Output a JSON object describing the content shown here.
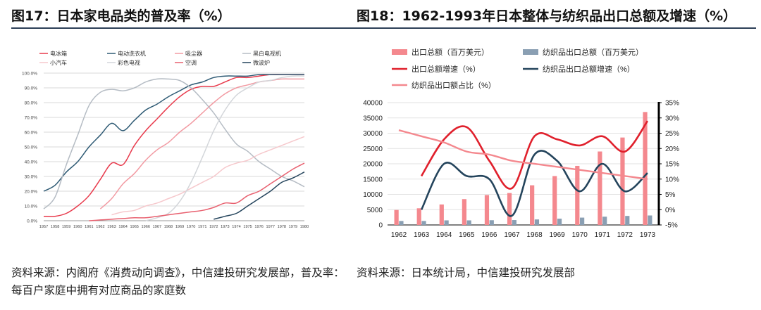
{
  "left": {
    "title": "图17：日本家电品类的普及率（%）",
    "source": "资料来源：内阁府《消费动向调查》，中信建投研究发展部，普及率：每百户家庭中拥有对应商品的家庭数"
  },
  "right": {
    "title": "图18：1962-1993年日本整体与纺织品出口总额及增速（%）",
    "source": "资料来源：日本统计局，中信建投研究发展部"
  },
  "chart_data": [
    {
      "type": "line",
      "title": "日本家电品类的普及率（%）",
      "x": [
        1957,
        1958,
        1959,
        1960,
        1961,
        1962,
        1963,
        1964,
        1965,
        1966,
        1967,
        1968,
        1969,
        1970,
        1971,
        1972,
        1973,
        1974,
        1975,
        1976,
        1977,
        1978,
        1979,
        1980
      ],
      "ylim": [
        0,
        100
      ],
      "yticks": [
        "0.0%",
        "10.0%",
        "20.0%",
        "30.0%",
        "40.0%",
        "50.0%",
        "60.0%",
        "70.0%",
        "80.0%",
        "90.0%",
        "100.0%"
      ],
      "legend": [
        "电冰箱",
        "电动洗衣机",
        "吸尘器",
        "黑白电视机",
        "小汽车",
        "彩色电视",
        "空调",
        "微波炉"
      ],
      "series": [
        {
          "name": "电冰箱",
          "color": "#e83a4c",
          "values": [
            3,
            3,
            5,
            10,
            17,
            28,
            39,
            38,
            51,
            61,
            69,
            77,
            84,
            89,
            91,
            91,
            94,
            97,
            97,
            98,
            99,
            99,
            99,
            99
          ]
        },
        {
          "name": "电动洗衣机",
          "color": "#2e5a74",
          "values": [
            20,
            24,
            33,
            40,
            50,
            58,
            66,
            61,
            68,
            75,
            79,
            84,
            88,
            92,
            94,
            97,
            98,
            98,
            98,
            99,
            99,
            99,
            99,
            99
          ]
        },
        {
          "name": "吸尘器",
          "color": "#f29aa2",
          "values": [
            null,
            null,
            null,
            null,
            null,
            8,
            15,
            25,
            32,
            41,
            48,
            53,
            60,
            66,
            73,
            80,
            86,
            90,
            92,
            94,
            95,
            96,
            96,
            96
          ]
        },
        {
          "name": "黑白电视机",
          "color": "#b5bcc4",
          "values": [
            8,
            16,
            38,
            58,
            78,
            87,
            89,
            88,
            90,
            94,
            96,
            96,
            95,
            90,
            82,
            73,
            62,
            52,
            47,
            40,
            35,
            30,
            27,
            23
          ]
        },
        {
          "name": "小汽车",
          "color": "#f6c8cc",
          "values": [
            null,
            null,
            null,
            null,
            null,
            null,
            4,
            6,
            7,
            10,
            12,
            15,
            18,
            22,
            26,
            30,
            36,
            39,
            41,
            45,
            48,
            51,
            54,
            57
          ]
        },
        {
          "name": "彩色电视",
          "color": "#d3d6da",
          "values": [
            null,
            null,
            null,
            null,
            null,
            null,
            null,
            null,
            null,
            0,
            2,
            5,
            13,
            26,
            43,
            61,
            75,
            85,
            90,
            94,
            95,
            97,
            98,
            98
          ]
        },
        {
          "name": "空调",
          "color": "#e8606f",
          "values": [
            null,
            null,
            null,
            null,
            0,
            0.5,
            1,
            1.5,
            2,
            2,
            3,
            4,
            5,
            6,
            7,
            9,
            12,
            12,
            17,
            20,
            25,
            30,
            35,
            39
          ]
        },
        {
          "name": "微波炉",
          "color": "#24445c",
          "values": [
            null,
            null,
            null,
            null,
            null,
            null,
            null,
            null,
            null,
            null,
            null,
            null,
            null,
            null,
            null,
            1,
            3,
            5,
            10,
            15,
            20,
            26,
            29,
            33
          ]
        }
      ]
    },
    {
      "type": "bar",
      "title": "1962-1993年日本整体与纺织品出口总额及增速（%）",
      "categories": [
        "1962",
        "1963",
        "1964",
        "1965",
        "1966",
        "1967",
        "1968",
        "1969",
        "1970",
        "1971",
        "1972",
        "1973"
      ],
      "ylim": [
        0,
        40000
      ],
      "yticks": [
        "0",
        "5000",
        "10000",
        "15000",
        "20000",
        "25000",
        "30000",
        "35000",
        "40000"
      ],
      "y2lim": [
        -5,
        35
      ],
      "y2ticks": [
        "-5%",
        "0%",
        "5%",
        "10%",
        "15%",
        "20%",
        "25%",
        "30%",
        "35%"
      ],
      "legend": [
        "出口总额（百万美元）",
        "纺织品出口总额（百万美元）",
        "出口总额增速（%）",
        "纺织品出口总额增速（%）",
        "纺织品出口额占比（%）"
      ],
      "series": [
        {
          "name": "出口总额（百万美元）",
          "kind": "bar",
          "axis": "left",
          "color": "#f4888e",
          "values": [
            4900,
            5450,
            6700,
            8450,
            9780,
            10440,
            12970,
            15990,
            19320,
            24020,
            28590,
            36930
          ]
        },
        {
          "name": "纺织品出口总额（百万美元）",
          "kind": "bar",
          "axis": "left",
          "color": "#8a9fb3",
          "values": [
            1300,
            1300,
            1500,
            1500,
            1550,
            1600,
            1800,
            2050,
            2400,
            2700,
            2950,
            3100
          ]
        },
        {
          "name": "出口总额增速（%）",
          "kind": "line",
          "axis": "right",
          "color": "#e0202c",
          "values": [
            null,
            11,
            23,
            27,
            16,
            7,
            24,
            23,
            21,
            24,
            19,
            29
          ]
        },
        {
          "name": "纺织品出口总额增速（%）",
          "kind": "line",
          "axis": "right",
          "color": "#24445c",
          "values": [
            null,
            0,
            15,
            11,
            10,
            -2,
            18,
            16,
            6,
            15,
            6,
            12
          ]
        },
        {
          "name": "纺织品出口额占比（%）",
          "kind": "line",
          "axis": "right",
          "color": "#f4888e",
          "values": [
            26,
            24,
            22,
            19,
            18,
            16,
            15,
            14,
            13,
            12,
            11,
            10
          ]
        }
      ]
    }
  ]
}
